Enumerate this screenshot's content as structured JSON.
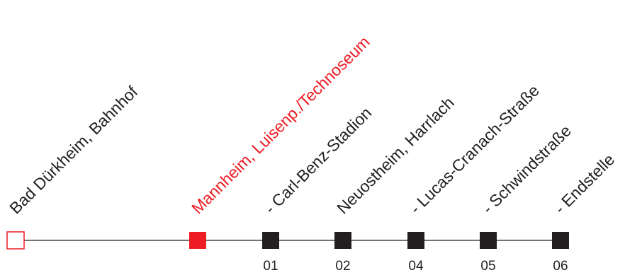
{
  "colors": {
    "line": "#231f20",
    "stop": "#231f20",
    "highlight": "#ed1c24",
    "text": "#231f20"
  },
  "route": {
    "stops": [
      {
        "label": "Bad Dürkheim, Bahnhof",
        "number": "",
        "marker": "hollow-square-icon",
        "color": "#ed1c24",
        "highlight": false
      },
      {
        "label": "Mannheim, Luisenp./Technoseum",
        "number": "",
        "marker": "filled-square-icon",
        "color": "#ed1c24",
        "highlight": true
      },
      {
        "label": "- Carl-Benz-Stadion",
        "number": "01",
        "marker": "filled-square-icon",
        "color": "#231f20",
        "highlight": false
      },
      {
        "label": "Neuostheim, Harrlach",
        "number": "02",
        "marker": "filled-square-icon",
        "color": "#231f20",
        "highlight": false
      },
      {
        "label": "- Lucas-Cranach-Straße",
        "number": "04",
        "marker": "filled-square-icon",
        "color": "#231f20",
        "highlight": false
      },
      {
        "label": "- Schwindstraße",
        "number": "05",
        "marker": "filled-square-icon",
        "color": "#231f20",
        "highlight": false
      },
      {
        "label": "- Endstelle",
        "number": "06",
        "marker": "filled-square-icon",
        "color": "#231f20",
        "highlight": false
      }
    ]
  }
}
